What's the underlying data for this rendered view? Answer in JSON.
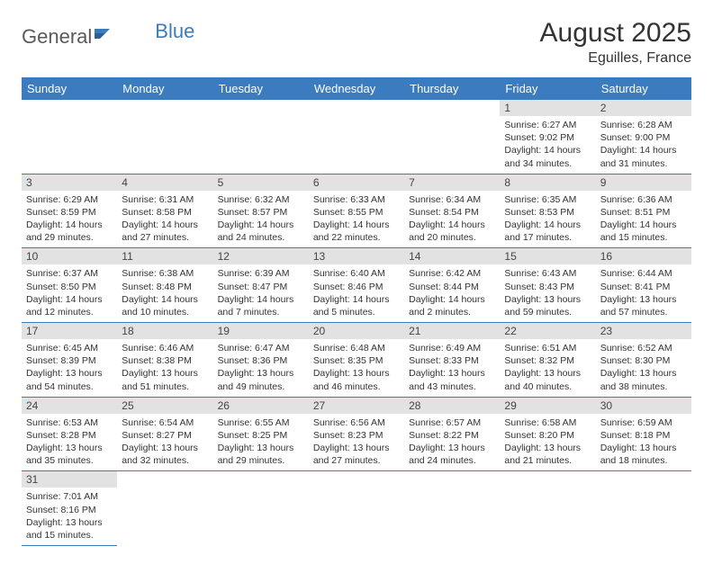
{
  "logo": {
    "text1": "General",
    "text2": "Blue"
  },
  "title": "August 2025",
  "subtitle": "Eguilles, France",
  "colors": {
    "header_bg": "#3b7bbf",
    "header_text": "#ffffff",
    "daynum_bg": "#e2e2e2",
    "daynum_text": "#444444",
    "cell_border": "#3b7bbf",
    "body_text": "#333333",
    "logo_gray": "#5a5a5a",
    "logo_blue": "#3b7bbf"
  },
  "weekdays": [
    "Sunday",
    "Monday",
    "Tuesday",
    "Wednesday",
    "Thursday",
    "Friday",
    "Saturday"
  ],
  "weeks": [
    [
      null,
      null,
      null,
      null,
      null,
      {
        "n": "1",
        "sr": "Sunrise: 6:27 AM",
        "ss": "Sunset: 9:02 PM",
        "d1": "Daylight: 14 hours",
        "d2": "and 34 minutes."
      },
      {
        "n": "2",
        "sr": "Sunrise: 6:28 AM",
        "ss": "Sunset: 9:00 PM",
        "d1": "Daylight: 14 hours",
        "d2": "and 31 minutes."
      }
    ],
    [
      {
        "n": "3",
        "sr": "Sunrise: 6:29 AM",
        "ss": "Sunset: 8:59 PM",
        "d1": "Daylight: 14 hours",
        "d2": "and 29 minutes."
      },
      {
        "n": "4",
        "sr": "Sunrise: 6:31 AM",
        "ss": "Sunset: 8:58 PM",
        "d1": "Daylight: 14 hours",
        "d2": "and 27 minutes."
      },
      {
        "n": "5",
        "sr": "Sunrise: 6:32 AM",
        "ss": "Sunset: 8:57 PM",
        "d1": "Daylight: 14 hours",
        "d2": "and 24 minutes."
      },
      {
        "n": "6",
        "sr": "Sunrise: 6:33 AM",
        "ss": "Sunset: 8:55 PM",
        "d1": "Daylight: 14 hours",
        "d2": "and 22 minutes."
      },
      {
        "n": "7",
        "sr": "Sunrise: 6:34 AM",
        "ss": "Sunset: 8:54 PM",
        "d1": "Daylight: 14 hours",
        "d2": "and 20 minutes."
      },
      {
        "n": "8",
        "sr": "Sunrise: 6:35 AM",
        "ss": "Sunset: 8:53 PM",
        "d1": "Daylight: 14 hours",
        "d2": "and 17 minutes."
      },
      {
        "n": "9",
        "sr": "Sunrise: 6:36 AM",
        "ss": "Sunset: 8:51 PM",
        "d1": "Daylight: 14 hours",
        "d2": "and 15 minutes."
      }
    ],
    [
      {
        "n": "10",
        "sr": "Sunrise: 6:37 AM",
        "ss": "Sunset: 8:50 PM",
        "d1": "Daylight: 14 hours",
        "d2": "and 12 minutes."
      },
      {
        "n": "11",
        "sr": "Sunrise: 6:38 AM",
        "ss": "Sunset: 8:48 PM",
        "d1": "Daylight: 14 hours",
        "d2": "and 10 minutes."
      },
      {
        "n": "12",
        "sr": "Sunrise: 6:39 AM",
        "ss": "Sunset: 8:47 PM",
        "d1": "Daylight: 14 hours",
        "d2": "and 7 minutes."
      },
      {
        "n": "13",
        "sr": "Sunrise: 6:40 AM",
        "ss": "Sunset: 8:46 PM",
        "d1": "Daylight: 14 hours",
        "d2": "and 5 minutes."
      },
      {
        "n": "14",
        "sr": "Sunrise: 6:42 AM",
        "ss": "Sunset: 8:44 PM",
        "d1": "Daylight: 14 hours",
        "d2": "and 2 minutes."
      },
      {
        "n": "15",
        "sr": "Sunrise: 6:43 AM",
        "ss": "Sunset: 8:43 PM",
        "d1": "Daylight: 13 hours",
        "d2": "and 59 minutes."
      },
      {
        "n": "16",
        "sr": "Sunrise: 6:44 AM",
        "ss": "Sunset: 8:41 PM",
        "d1": "Daylight: 13 hours",
        "d2": "and 57 minutes."
      }
    ],
    [
      {
        "n": "17",
        "sr": "Sunrise: 6:45 AM",
        "ss": "Sunset: 8:39 PM",
        "d1": "Daylight: 13 hours",
        "d2": "and 54 minutes."
      },
      {
        "n": "18",
        "sr": "Sunrise: 6:46 AM",
        "ss": "Sunset: 8:38 PM",
        "d1": "Daylight: 13 hours",
        "d2": "and 51 minutes."
      },
      {
        "n": "19",
        "sr": "Sunrise: 6:47 AM",
        "ss": "Sunset: 8:36 PM",
        "d1": "Daylight: 13 hours",
        "d2": "and 49 minutes."
      },
      {
        "n": "20",
        "sr": "Sunrise: 6:48 AM",
        "ss": "Sunset: 8:35 PM",
        "d1": "Daylight: 13 hours",
        "d2": "and 46 minutes."
      },
      {
        "n": "21",
        "sr": "Sunrise: 6:49 AM",
        "ss": "Sunset: 8:33 PM",
        "d1": "Daylight: 13 hours",
        "d2": "and 43 minutes."
      },
      {
        "n": "22",
        "sr": "Sunrise: 6:51 AM",
        "ss": "Sunset: 8:32 PM",
        "d1": "Daylight: 13 hours",
        "d2": "and 40 minutes."
      },
      {
        "n": "23",
        "sr": "Sunrise: 6:52 AM",
        "ss": "Sunset: 8:30 PM",
        "d1": "Daylight: 13 hours",
        "d2": "and 38 minutes."
      }
    ],
    [
      {
        "n": "24",
        "sr": "Sunrise: 6:53 AM",
        "ss": "Sunset: 8:28 PM",
        "d1": "Daylight: 13 hours",
        "d2": "and 35 minutes."
      },
      {
        "n": "25",
        "sr": "Sunrise: 6:54 AM",
        "ss": "Sunset: 8:27 PM",
        "d1": "Daylight: 13 hours",
        "d2": "and 32 minutes."
      },
      {
        "n": "26",
        "sr": "Sunrise: 6:55 AM",
        "ss": "Sunset: 8:25 PM",
        "d1": "Daylight: 13 hours",
        "d2": "and 29 minutes."
      },
      {
        "n": "27",
        "sr": "Sunrise: 6:56 AM",
        "ss": "Sunset: 8:23 PM",
        "d1": "Daylight: 13 hours",
        "d2": "and 27 minutes."
      },
      {
        "n": "28",
        "sr": "Sunrise: 6:57 AM",
        "ss": "Sunset: 8:22 PM",
        "d1": "Daylight: 13 hours",
        "d2": "and 24 minutes."
      },
      {
        "n": "29",
        "sr": "Sunrise: 6:58 AM",
        "ss": "Sunset: 8:20 PM",
        "d1": "Daylight: 13 hours",
        "d2": "and 21 minutes."
      },
      {
        "n": "30",
        "sr": "Sunrise: 6:59 AM",
        "ss": "Sunset: 8:18 PM",
        "d1": "Daylight: 13 hours",
        "d2": "and 18 minutes."
      }
    ],
    [
      {
        "n": "31",
        "sr": "Sunrise: 7:01 AM",
        "ss": "Sunset: 8:16 PM",
        "d1": "Daylight: 13 hours",
        "d2": "and 15 minutes."
      },
      null,
      null,
      null,
      null,
      null,
      null
    ]
  ]
}
